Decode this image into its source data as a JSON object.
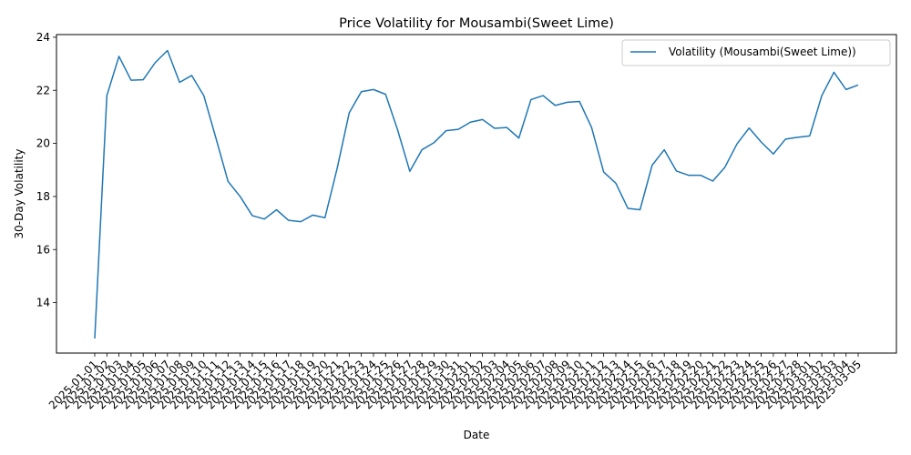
{
  "chart_data": {
    "type": "line",
    "title": "Price Volatility for Mousambi(Sweet Lime)",
    "xlabel": "Date",
    "ylabel": "30-Day Volatility",
    "ylim": [
      12.1,
      24.1
    ],
    "yticks": [
      14,
      16,
      18,
      20,
      22,
      24
    ],
    "grid": false,
    "legend_position": "top-right",
    "color": "#1f77b4",
    "x": [
      "2025-01-01",
      "2025-01-02",
      "2025-01-03",
      "2025-01-04",
      "2025-01-05",
      "2025-01-06",
      "2025-01-07",
      "2025-01-08",
      "2025-01-09",
      "2025-01-10",
      "2025-01-11",
      "2025-01-12",
      "2025-01-13",
      "2025-01-14",
      "2025-01-15",
      "2025-01-16",
      "2025-01-17",
      "2025-01-18",
      "2025-01-19",
      "2025-01-20",
      "2025-01-21",
      "2025-01-22",
      "2025-01-23",
      "2025-01-24",
      "2025-01-25",
      "2025-01-26",
      "2025-01-27",
      "2025-01-28",
      "2025-01-29",
      "2025-01-30",
      "2025-01-31",
      "2025-02-01",
      "2025-02-02",
      "2025-02-03",
      "2025-02-04",
      "2025-02-05",
      "2025-02-06",
      "2025-02-07",
      "2025-02-08",
      "2025-02-09",
      "2025-02-10",
      "2025-02-11",
      "2025-02-12",
      "2025-02-13",
      "2025-02-14",
      "2025-02-15",
      "2025-02-16",
      "2025-02-17",
      "2025-02-18",
      "2025-02-19",
      "2025-02-20",
      "2025-02-21",
      "2025-02-22",
      "2025-02-23",
      "2025-02-24",
      "2025-02-25",
      "2025-02-26",
      "2025-02-27",
      "2025-02-28",
      "2025-03-01",
      "2025-03-02",
      "2025-03-03",
      "2025-03-04",
      "2025-03-05"
    ],
    "series": [
      {
        "name": "Volatility (Mousambi(Sweet Lime))",
        "values": [
          12.65,
          21.8,
          23.28,
          22.38,
          22.4,
          23.05,
          23.5,
          22.3,
          22.56,
          21.8,
          20.2,
          18.57,
          18.0,
          17.28,
          17.15,
          17.5,
          17.1,
          17.05,
          17.3,
          17.2,
          19.05,
          21.15,
          21.95,
          22.03,
          21.85,
          20.5,
          18.95,
          19.76,
          20.03,
          20.48,
          20.53,
          20.8,
          20.9,
          20.57,
          20.6,
          20.2,
          21.65,
          21.8,
          21.43,
          21.55,
          21.58,
          20.6,
          18.92,
          18.5,
          17.55,
          17.5,
          19.18,
          19.76,
          18.96,
          18.8,
          18.8,
          18.58,
          19.1,
          19.98,
          20.58,
          20.05,
          19.6,
          20.16,
          20.23,
          20.28,
          21.8,
          22.68,
          22.03,
          22.2
        ]
      }
    ]
  }
}
